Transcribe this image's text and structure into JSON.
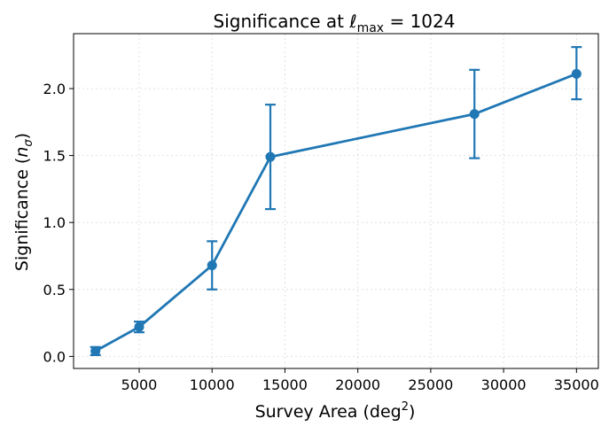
{
  "chart_data": {
    "type": "line",
    "title_prefix": "Significance at ",
    "title_symbol": "ℓ",
    "title_subscript": "max",
    "title_suffix": " = 1024",
    "xlabel_main": "Survey Area (deg",
    "xlabel_sup": "2",
    "xlabel_end": ")",
    "ylabel_main": "Significance (",
    "ylabel_symbol": "n",
    "ylabel_sub": "σ",
    "ylabel_end": ")",
    "xlim": [
      500,
      36500
    ],
    "ylim": [
      -0.09,
      2.41
    ],
    "xticks": [
      5000,
      10000,
      15000,
      20000,
      25000,
      30000,
      35000
    ],
    "yticks": [
      0.0,
      0.5,
      1.0,
      1.5,
      2.0
    ],
    "grid": true,
    "series": [
      {
        "color": "#1f77b4",
        "x": [
          2000,
          5000,
          10000,
          14000,
          28000,
          35000
        ],
        "y": [
          0.04,
          0.22,
          0.68,
          1.49,
          1.81,
          2.11
        ],
        "err_low": [
          0.03,
          0.04,
          0.18,
          0.39,
          0.33,
          0.19
        ],
        "err_high": [
          0.03,
          0.04,
          0.18,
          0.39,
          0.33,
          0.2
        ]
      }
    ]
  }
}
